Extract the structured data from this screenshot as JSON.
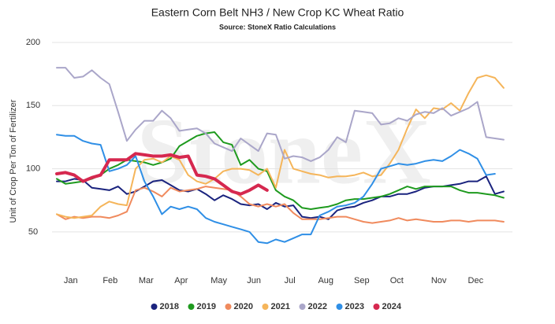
{
  "chart_data": {
    "type": "line",
    "title": "Eastern Corn Belt NH3 / New Crop KC Wheat Ratio",
    "subtitle": "Source: StoneX Ratio Calculations",
    "y_label": "Unit of Crop Per Ton of Fertilizer",
    "watermark": "StoneX",
    "grid": true,
    "legend": "bottom",
    "xlim": [
      1,
      53
    ],
    "ylim": [
      25,
      200
    ],
    "yticks": [
      50,
      100,
      150,
      200
    ],
    "xticks": [
      {
        "value": 2.6,
        "label": "Jan"
      },
      {
        "value": 7.1,
        "label": "Feb"
      },
      {
        "value": 11.2,
        "label": "Mar"
      },
      {
        "value": 15.2,
        "label": "Apr"
      },
      {
        "value": 19.5,
        "label": "May"
      },
      {
        "value": 23.5,
        "label": "Jun"
      },
      {
        "value": 27.6,
        "label": "Jul"
      },
      {
        "value": 31.7,
        "label": "Aug"
      },
      {
        "value": 35.8,
        "label": "Sep"
      },
      {
        "value": 39.8,
        "label": "Oct"
      },
      {
        "value": 44.6,
        "label": "Nov"
      },
      {
        "value": 48.8,
        "label": "Dec"
      }
    ],
    "x": [
      1,
      2,
      3,
      4,
      5,
      6,
      7,
      8,
      9,
      10,
      11,
      12,
      13,
      14,
      15,
      16,
      17,
      18,
      19,
      20,
      21,
      22,
      23,
      24,
      25,
      26,
      27,
      28,
      29,
      30,
      31,
      32,
      33,
      34,
      35,
      36,
      37,
      38,
      39,
      40,
      41,
      42,
      43,
      44,
      45,
      46,
      47,
      48,
      49,
      50,
      51,
      52
    ],
    "series": [
      {
        "name": "2018",
        "color": "#1a237e",
        "width": 2,
        "values": [
          90,
          90,
          92,
          91,
          85,
          84,
          83,
          86,
          80,
          82,
          86,
          90,
          91,
          87,
          83,
          82,
          84,
          80,
          75,
          79,
          76,
          72,
          71,
          72,
          68,
          73,
          70,
          71,
          62,
          61,
          62,
          60,
          67,
          69,
          70,
          73,
          75,
          78,
          78,
          80,
          80,
          82,
          85,
          86,
          86,
          87,
          88,
          90,
          90,
          94,
          80,
          82
        ]
      },
      {
        "name": "2019",
        "color": "#1e9a1e",
        "width": 2,
        "values": [
          92,
          88,
          89,
          90,
          92,
          95,
          100,
          103,
          107,
          106,
          105,
          103,
          105,
          108,
          118,
          122,
          126,
          128,
          129,
          121,
          119,
          103,
          107,
          100,
          98,
          83,
          78,
          75,
          69,
          68,
          69,
          70,
          72,
          75,
          76,
          76,
          77,
          78,
          80,
          83,
          86,
          84,
          86,
          86,
          86,
          86,
          83,
          81,
          81,
          80,
          79,
          77
        ]
      },
      {
        "name": "2020",
        "color": "#f08a5d",
        "width": 2,
        "values": [
          64,
          60,
          62,
          61,
          62,
          62,
          61,
          63,
          66,
          83,
          85,
          82,
          78,
          85,
          82,
          83,
          84,
          86,
          85,
          84,
          83,
          78,
          72,
          70,
          72,
          70,
          72,
          65,
          60,
          60,
          60,
          61,
          62,
          62,
          60,
          58,
          57,
          58,
          59,
          61,
          59,
          60,
          59,
          58,
          58,
          59,
          59,
          58,
          59,
          59,
          59,
          58
        ]
      },
      {
        "name": "2021",
        "color": "#f5b55a",
        "width": 2,
        "values": [
          64,
          62,
          61,
          62,
          63,
          70,
          74,
          72,
          71,
          100,
          107,
          108,
          105,
          110,
          107,
          95,
          90,
          88,
          92,
          98,
          100,
          100,
          99,
          95,
          100,
          85,
          115,
          100,
          98,
          96,
          95,
          93,
          94,
          94,
          95,
          97,
          94,
          95,
          104,
          115,
          132,
          147,
          140,
          148,
          147,
          152,
          146,
          160,
          172,
          174,
          172,
          164
        ]
      },
      {
        "name": "2022",
        "color": "#aaa6c9",
        "width": 2,
        "values": [
          180,
          180,
          172,
          173,
          178,
          172,
          167,
          145,
          122,
          131,
          138,
          138,
          146,
          140,
          130,
          131,
          132,
          128,
          120,
          117,
          114,
          124,
          119,
          114,
          128,
          127,
          108,
          110,
          109,
          106,
          109,
          115,
          125,
          121,
          146,
          145,
          144,
          135,
          136,
          140,
          138,
          143,
          145,
          144,
          148,
          142,
          145,
          148,
          153,
          125,
          124,
          123
        ]
      },
      {
        "name": "2023",
        "color": "#2f8fe6",
        "width": 2,
        "values": [
          127,
          126,
          126,
          122,
          120,
          119,
          98,
          100,
          103,
          110,
          90,
          78,
          64,
          70,
          68,
          70,
          68,
          61,
          58,
          56,
          54,
          52,
          50,
          42,
          41,
          44,
          42,
          45,
          48,
          48,
          63,
          66,
          70,
          71,
          73,
          78,
          88,
          100,
          102,
          104,
          103,
          104,
          106,
          107,
          106,
          110,
          115,
          112,
          108,
          95,
          96,
          null
        ]
      },
      {
        "name": "2024",
        "color": "#d6284f",
        "width": 4,
        "values": [
          96,
          97,
          95,
          90,
          93,
          95,
          107,
          107,
          107,
          112,
          111,
          110,
          110,
          111,
          109,
          110,
          95,
          94,
          92,
          87,
          82,
          80,
          83,
          87,
          83,
          null,
          null,
          null,
          null,
          null,
          null,
          null,
          null,
          null,
          null,
          null,
          null,
          null,
          null,
          null,
          null,
          null,
          null,
          null,
          null,
          null,
          null,
          null,
          null,
          null,
          null,
          null
        ]
      }
    ]
  }
}
